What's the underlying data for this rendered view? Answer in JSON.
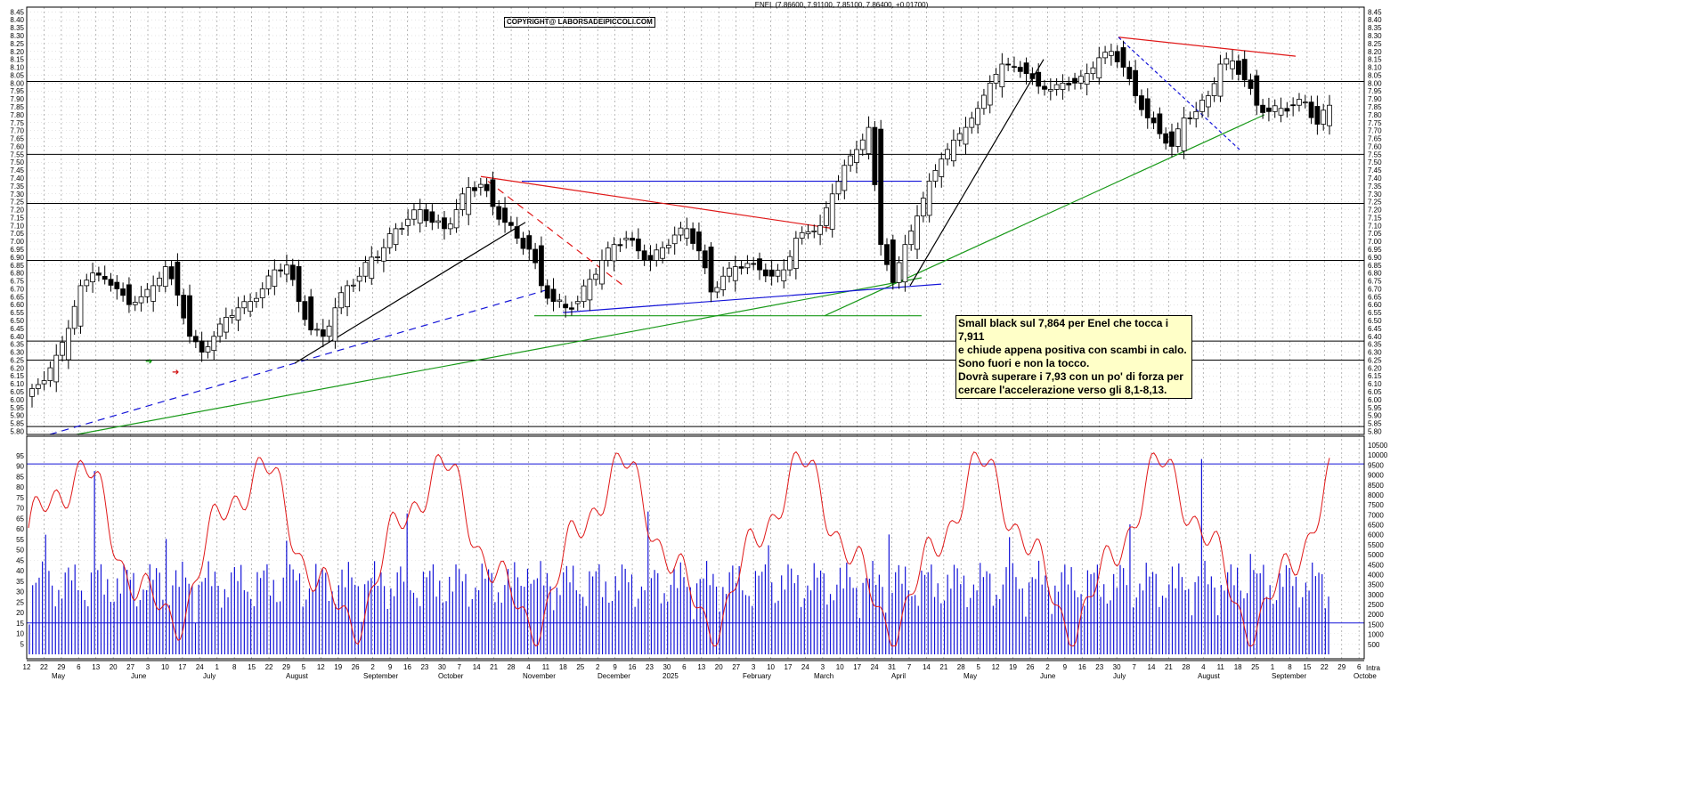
{
  "chart_data": [
    {
      "type": "candlestick",
      "title": "ENEL (7.86600, 7.91100, 7.85100, 7.86400, +0.01700)",
      "copyright": "COPYRIGHT@ LABORSADEIPICCOLI.COM",
      "ylim": [
        5.78,
        8.48
      ],
      "y_ticks": [
        "5.80",
        "5.85",
        "5.90",
        "5.95",
        "6.00",
        "6.05",
        "6.10",
        "6.15",
        "6.20",
        "6.25",
        "6.30",
        "6.35",
        "6.40",
        "6.45",
        "6.50",
        "6.55",
        "6.60",
        "6.65",
        "6.70",
        "6.75",
        "6.80",
        "6.85",
        "6.90",
        "6.95",
        "7.00",
        "7.05",
        "7.10",
        "7.15",
        "7.20",
        "7.25",
        "7.30",
        "7.35",
        "7.40",
        "7.45",
        "7.50",
        "7.55",
        "7.60",
        "7.65",
        "7.70",
        "7.75",
        "7.80",
        "7.85",
        "7.90",
        "7.95",
        "8.00",
        "8.05",
        "8.10",
        "8.15",
        "8.20",
        "8.25",
        "8.30",
        "8.35",
        "8.40",
        "8.45"
      ],
      "x_start": "2024-04-22",
      "x_end": "2025-10-06",
      "horizontal_levels": [
        5.83,
        6.25,
        6.37,
        6.88,
        7.24,
        7.55,
        8.01
      ],
      "closes": [
        6.07,
        6.12,
        6.28,
        6.45,
        6.72,
        6.8,
        6.76,
        6.7,
        6.6,
        6.65,
        6.72,
        6.84,
        6.66,
        6.4,
        6.3,
        6.4,
        6.52,
        6.58,
        6.62,
        6.7,
        6.82,
        6.85,
        6.62,
        6.44,
        6.4,
        6.58,
        6.72,
        6.78,
        6.9,
        6.96,
        7.08,
        7.14,
        7.2,
        7.12,
        7.08,
        7.2,
        7.34,
        7.36,
        7.22,
        7.12,
        7.02,
        6.95,
        6.72,
        6.62,
        6.58,
        6.62,
        6.76,
        6.88,
        6.98,
        7.02,
        6.94,
        6.88,
        6.96,
        7.04,
        7.08,
        6.94,
        6.68,
        6.78,
        6.84,
        6.86,
        6.82,
        6.78,
        6.82,
        7.02,
        7.06,
        7.1,
        7.3,
        7.48,
        7.58,
        7.72,
        6.98,
        6.74,
        6.98,
        7.16,
        7.38,
        7.52,
        7.64,
        7.72,
        7.84,
        8.0,
        8.12,
        8.1,
        8.06,
        7.98,
        7.96,
        8.0,
        8.0,
        8.06,
        8.16,
        8.2,
        8.1,
        7.92,
        7.78,
        7.68,
        7.6,
        7.78,
        7.82,
        7.92,
        8.12,
        8.14,
        8.02,
        7.86,
        7.82,
        7.84,
        7.86,
        7.88,
        7.74,
        7.86
      ],
      "volume_ylim": [
        0,
        10500
      ],
      "volume_ticks": [
        "500",
        "1000",
        "1500",
        "2000",
        "2500",
        "3000",
        "3500",
        "4000",
        "4500",
        "5000",
        "5500",
        "6000",
        "6500",
        "7000",
        "7500",
        "8000",
        "8500",
        "9000",
        "9500",
        "10000",
        "10500"
      ],
      "volume_bars": 400,
      "oscillator_ylim": [
        0,
        100
      ],
      "oscillator_ticks": [
        "5",
        "10",
        "15",
        "20",
        "25",
        "30",
        "35",
        "40",
        "45",
        "50",
        "55",
        "60",
        "65",
        "70",
        "75",
        "80",
        "85",
        "90",
        "95"
      ],
      "oscillator_levels": [
        91,
        15
      ]
    }
  ],
  "x_axis": {
    "day_ticks": [
      "12",
      "22",
      "29",
      "6",
      "13",
      "20",
      "27",
      "3",
      "10",
      "17",
      "24",
      "1",
      "8",
      "15",
      "22",
      "29",
      "5",
      "12",
      "19",
      "26",
      "2",
      "9",
      "16",
      "23",
      "30",
      "7",
      "14",
      "21",
      "28",
      "4",
      "11",
      "18",
      "25",
      "2",
      "9",
      "16",
      "23",
      "30",
      "6",
      "13",
      "20",
      "27",
      "3",
      "10",
      "17",
      "24",
      "3",
      "10",
      "17",
      "24",
      "31",
      "7",
      "14",
      "21",
      "28",
      "5",
      "12",
      "19",
      "26",
      "2",
      "9",
      "16",
      "23",
      "30",
      "7",
      "14",
      "21",
      "28",
      "4",
      "11",
      "18",
      "25",
      "1",
      "8",
      "15",
      "22",
      "29",
      "6"
    ],
    "months": [
      "May",
      "June",
      "July",
      "August",
      "September",
      "October",
      "November",
      "December",
      "2025",
      "February",
      "March",
      "April",
      "May",
      "June",
      "July",
      "August",
      "September",
      "Octobe"
    ],
    "corner_label": "Intra"
  },
  "annotation": {
    "lines": [
      "Small black sul 7,864 per Enel che tocca i 7,911",
      "e chiude appena positiva con scambi in calo.",
      "Sono fuori e non la tocco.",
      "Dovrà superare i 7,93 con un po' di forza per",
      "cercare l'accelerazione verso gli 8,1-8,13."
    ],
    "bg_color": "#ffffc8"
  },
  "colors": {
    "up": "#ffffff",
    "down": "#000000",
    "support_green": "#1a9a1a",
    "resistance_red": "#e01818",
    "trend_blue": "#1414d8",
    "oscillator": "#e01818",
    "volume": "#1414d8"
  }
}
